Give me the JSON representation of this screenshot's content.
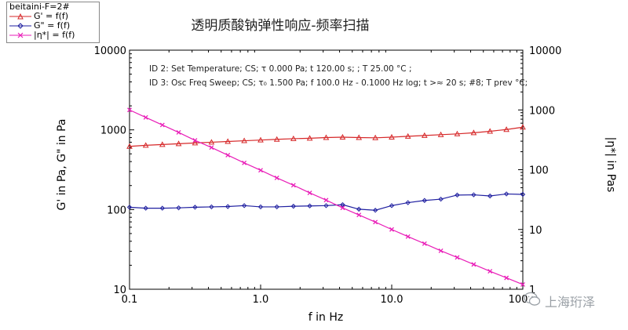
{
  "legend": {
    "title": "beitaini-F=2#",
    "items": [
      {
        "label": "G' = f(f)",
        "color": "#d62728",
        "marker": "triangle"
      },
      {
        "label": "G\" = f(f)",
        "color": "#1f1fa0",
        "marker": "diamond"
      },
      {
        "label": "|η*| = f(f)",
        "color": "#e91eb8",
        "marker": "x"
      }
    ]
  },
  "annotations": [
    "ID 2: Set Temperature; CS; τ 0.000 Pa; t 120.00 s;    ; T 25.00 °C ;",
    "ID 3: Osc Freq Sweep; CS; τ₀ 1.500 Pa; f 100.0 Hz - 0.1000 Hz log; t >≈ 20 s; #8; T prev °C;"
  ],
  "watermark": "上海珩泽",
  "chart_data": {
    "type": "line",
    "title": "透明质酸钠弹性响应-频率扫描",
    "xlabel": "f in Hz",
    "ylabel": "G' in Pa, G\" in Pa",
    "y2label": "|η*| in Pas",
    "xscale": "log",
    "yscale": "log",
    "y2scale": "log",
    "xlim": [
      0.1,
      100
    ],
    "ylim": [
      10,
      10000
    ],
    "y2lim": [
      1,
      10000
    ],
    "xticks": [
      "0.1",
      "1.0",
      "10.0",
      "100"
    ],
    "yticks": [
      "10",
      "100",
      "1000",
      "10000"
    ],
    "y2ticks": [
      "1",
      "10",
      "100",
      "1000",
      "10000"
    ],
    "grid": false,
    "legend_position": "top-left",
    "series": [
      {
        "name": "G' = f(f)",
        "axis": "left",
        "color": "#d62728",
        "marker": "triangle",
        "x": [
          0.1,
          0.133,
          0.178,
          0.237,
          0.316,
          0.422,
          0.562,
          0.75,
          1.0,
          1.33,
          1.78,
          2.37,
          3.16,
          4.22,
          5.62,
          7.5,
          10.0,
          13.3,
          17.8,
          23.7,
          31.6,
          42.2,
          56.2,
          75.0,
          100
        ],
        "values": [
          620,
          640,
          655,
          670,
          685,
          700,
          715,
          730,
          745,
          760,
          775,
          785,
          800,
          810,
          800,
          795,
          810,
          830,
          850,
          870,
          890,
          920,
          960,
          1010,
          1080
        ]
      },
      {
        "name": "G\" = f(f)",
        "axis": "left",
        "color": "#1f1fa0",
        "marker": "diamond",
        "x": [
          0.1,
          0.133,
          0.178,
          0.237,
          0.316,
          0.422,
          0.562,
          0.75,
          1.0,
          1.33,
          1.78,
          2.37,
          3.16,
          4.22,
          5.62,
          7.5,
          10.0,
          13.3,
          17.8,
          23.7,
          31.6,
          42.2,
          56.2,
          75.0,
          100
        ],
        "values": [
          107,
          104,
          104,
          105,
          107,
          108,
          109,
          112,
          108,
          108,
          110,
          111,
          112,
          115,
          101,
          98,
          112,
          122,
          130,
          135,
          152,
          153,
          148,
          157,
          155
        ]
      },
      {
        "name": "|η*| = f(f)",
        "axis": "right",
        "color": "#e91eb8",
        "marker": "x",
        "x": [
          0.1,
          0.133,
          0.178,
          0.237,
          0.316,
          0.422,
          0.562,
          0.75,
          1.0,
          1.33,
          1.78,
          2.37,
          3.16,
          4.22,
          5.62,
          7.5,
          10.0,
          13.3,
          17.8,
          23.7,
          31.6,
          42.2,
          56.2,
          75.0,
          100
        ],
        "values": [
          1000,
          750,
          560,
          420,
          310,
          235,
          175,
          130,
          98,
          73,
          55,
          41,
          31,
          23,
          17.5,
          13.3,
          10,
          7.6,
          5.8,
          4.4,
          3.4,
          2.6,
          2.0,
          1.55,
          1.2
        ]
      }
    ]
  }
}
